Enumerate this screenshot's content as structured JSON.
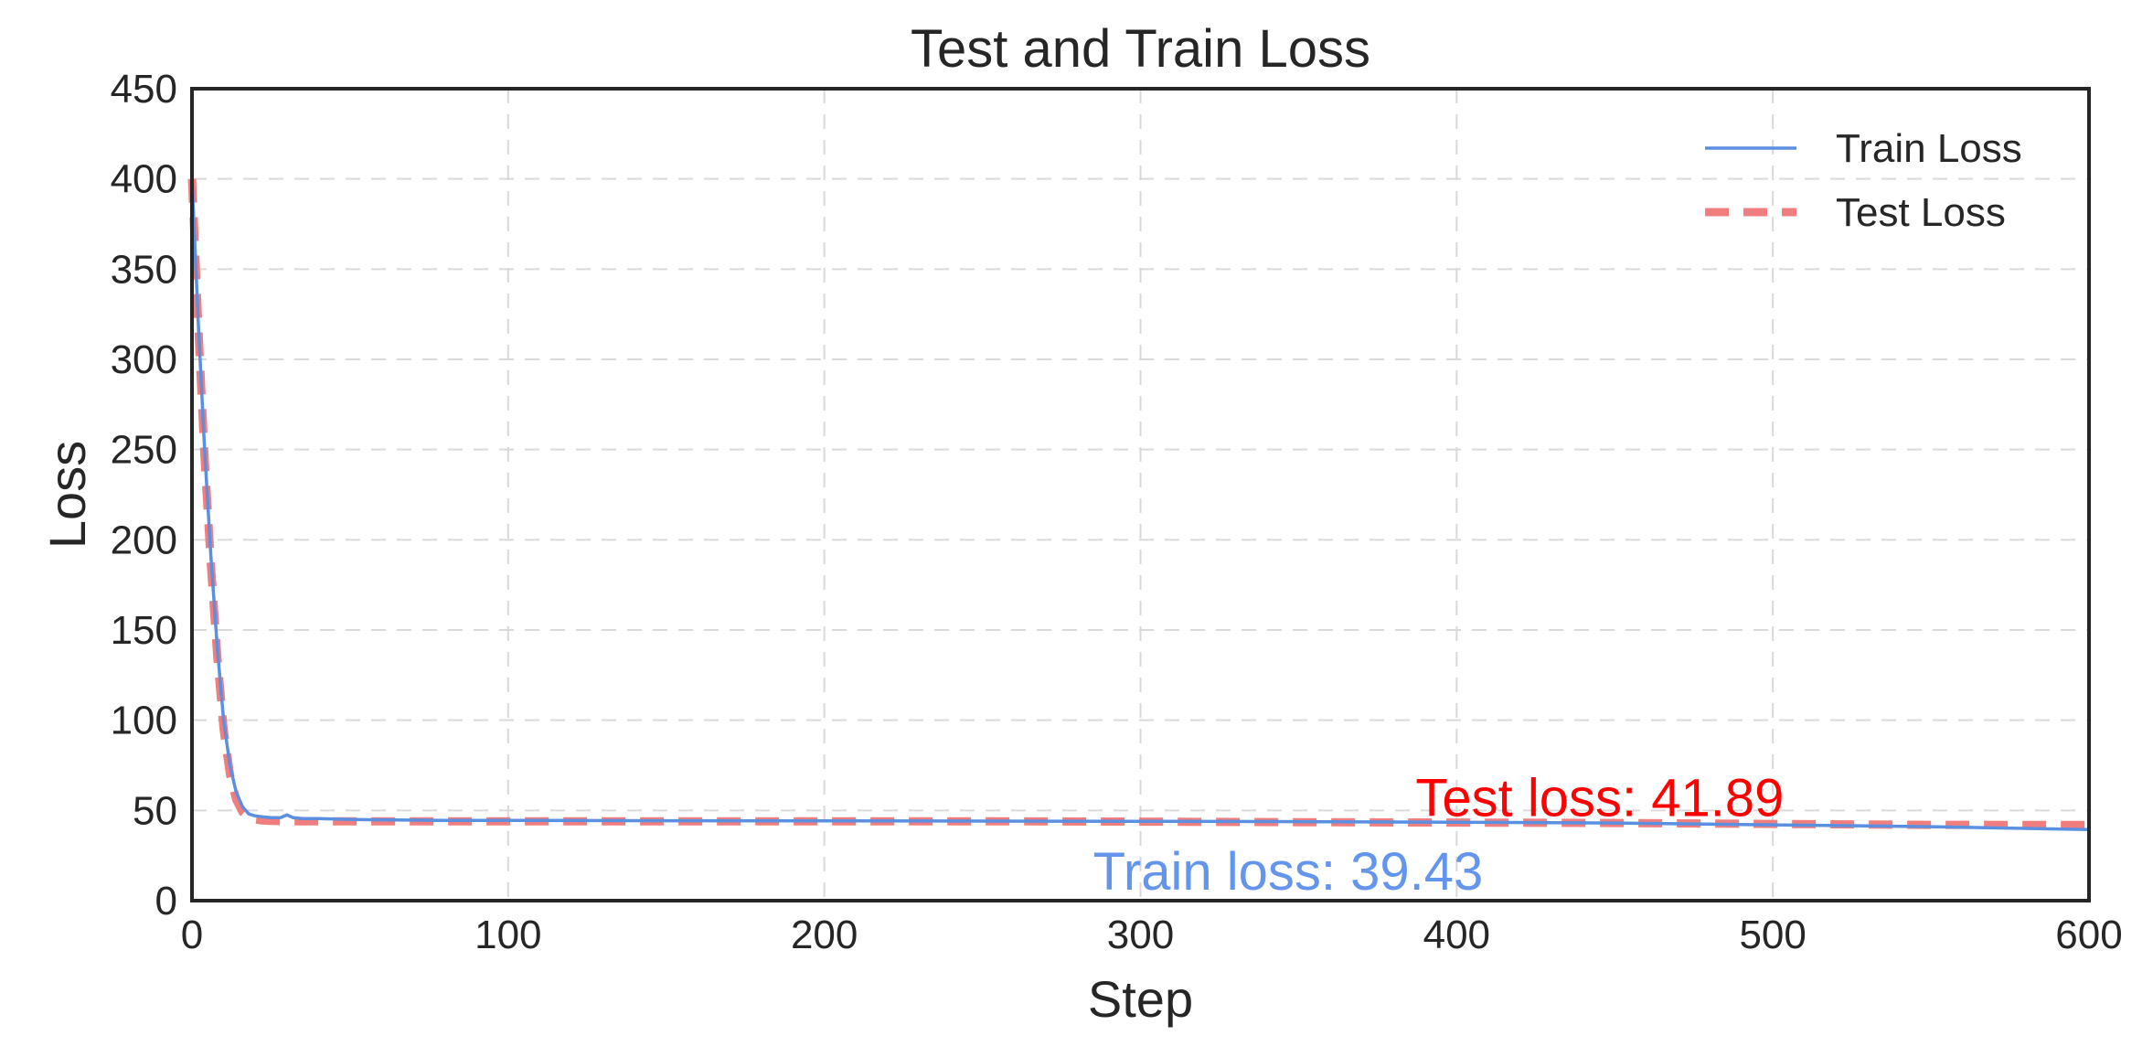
{
  "chart_data": {
    "type": "line",
    "title": "Test and Train Loss",
    "xlabel": "Step",
    "ylabel": "Loss",
    "xlim": [
      0,
      600
    ],
    "ylim": [
      0,
      450
    ],
    "xticks": [
      0,
      100,
      200,
      300,
      400,
      500,
      600
    ],
    "yticks": [
      0,
      50,
      100,
      150,
      200,
      250,
      300,
      350,
      400,
      450
    ],
    "grid": true,
    "legend_position": "top-right",
    "series": [
      {
        "name": "Train Loss",
        "color": "#5b8fe0",
        "style": "solid",
        "x": [
          0,
          2,
          4,
          6,
          8,
          10,
          12,
          14,
          16,
          18,
          20,
          22,
          25,
          28,
          30,
          32,
          35,
          40,
          50,
          60,
          80,
          100,
          150,
          200,
          250,
          300,
          350,
          400,
          450,
          500,
          550,
          600
        ],
        "y": [
          400,
          320,
          250,
          190,
          140,
          100,
          75,
          60,
          52,
          48,
          47,
          46.5,
          46,
          46,
          47.5,
          46,
          45.5,
          45.5,
          45,
          44.8,
          44.5,
          44.5,
          44.3,
          44.2,
          44.1,
          44,
          43.8,
          43.5,
          43,
          42,
          41,
          39.43
        ]
      },
      {
        "name": "Test Loss",
        "color": "#f07070",
        "style": "dashed",
        "x": [
          0,
          2,
          4,
          6,
          8,
          10,
          12,
          14,
          16,
          18,
          20,
          22,
          25,
          30,
          40,
          50,
          60,
          80,
          100,
          150,
          200,
          250,
          300,
          350,
          400,
          450,
          500,
          550,
          600
        ],
        "y": [
          400,
          318,
          245,
          185,
          135,
          95,
          70,
          56,
          49,
          46,
          45,
          44.5,
          44.2,
          44,
          44,
          44,
          44,
          44,
          44,
          44,
          44,
          44,
          43.8,
          43.5,
          43.3,
          43,
          42.5,
          42,
          41.89
        ]
      }
    ],
    "annotations": [
      {
        "text": "Test loss: 41.89",
        "x": 387,
        "y": 47,
        "color": "#ff0000"
      },
      {
        "text": "Train loss: 39.43",
        "x": 285,
        "y": 6,
        "color": "#6495ed"
      }
    ]
  }
}
